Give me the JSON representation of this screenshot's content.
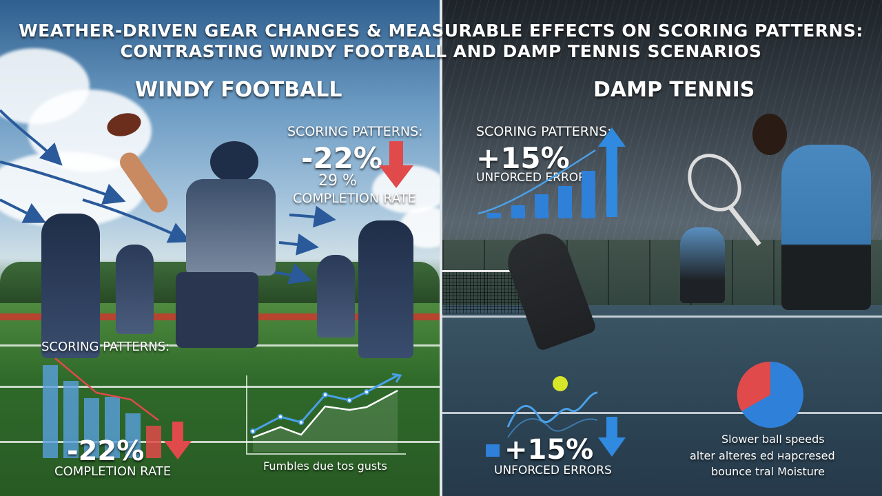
{
  "title_line1": "WEATHER-DRIVEN GEAR CHANGES & MEASURABLE EFFECTS ON SCORING PATTERNS:",
  "title_line2": "CONTRASTING WINDY FOOTBALL AND DAMP TENNIS SCENARIOS",
  "left": {
    "heading": "WINDY FOOTBALL",
    "top_stat": {
      "label": "SCORING PATTERNS:",
      "value": "-22%",
      "sub_value": "29 %",
      "caption": "COMPLETION RATE"
    },
    "bottom_stat": {
      "label": "SCORING PATTERNS:",
      "value": "-22%",
      "caption": "COMPLETION RATE"
    },
    "line_chart_caption": "Fumbles due tos gusts"
  },
  "right": {
    "heading": "DAMP TENNIS",
    "top_stat": {
      "label": "SCORING PATTERNS:",
      "value": "+15%",
      "caption": "UNFORCED ERRORS"
    },
    "bottom_stat": {
      "value": "+15%",
      "caption": "UNFORCED ERRORS"
    },
    "pie_caption_line1": "Slower ball speeds",
    "pie_caption_line2": "alter alteres ed нapcresed",
    "pie_caption_line3": "bounce tral Moisture"
  },
  "colors": {
    "bar_blue": "#5aa0e0",
    "arrow_red": "#e04a4a",
    "arrow_blue": "#2f8ae0",
    "pie_red": "#e04a4a",
    "pie_blue": "#2f80d8"
  }
}
